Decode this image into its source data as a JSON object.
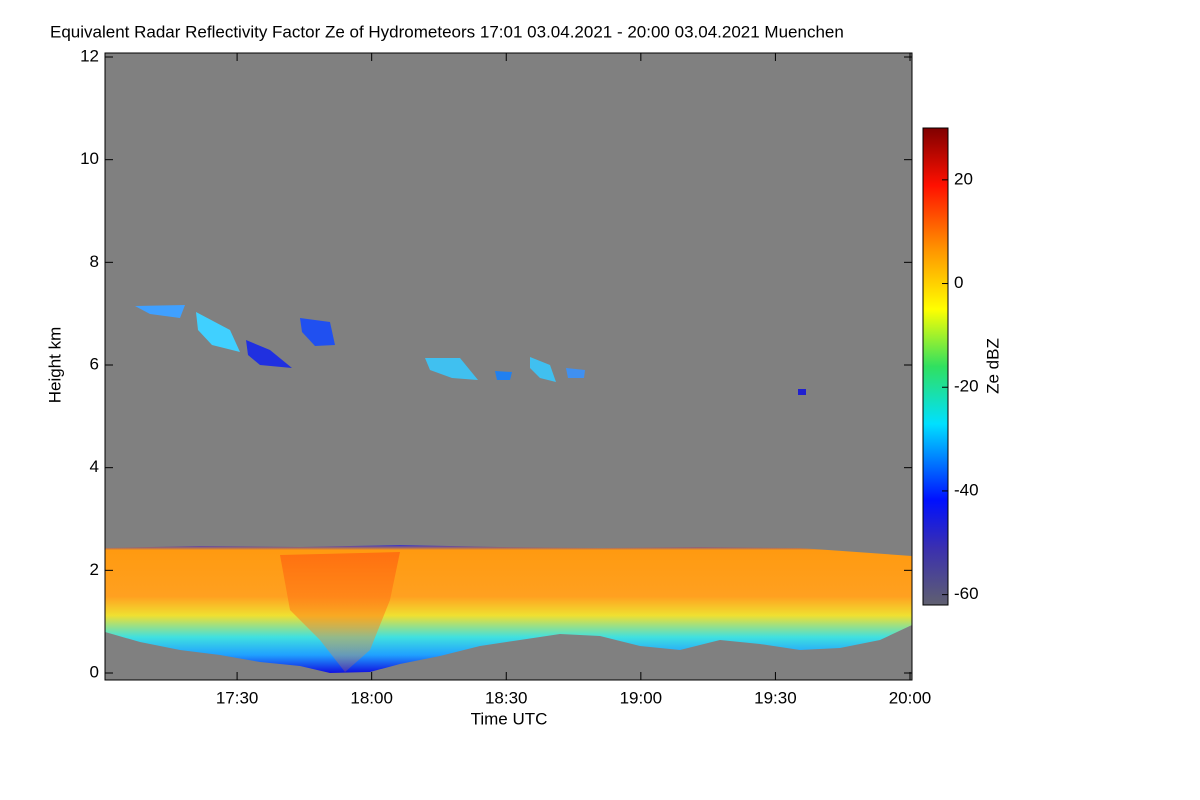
{
  "chart_data": {
    "type": "heatmap",
    "title": "Equivalent Radar Reflectivity Factor Ze of Hydrometeors   17:01 03.04.2021 - 20:00 03.04.2021 Muenchen",
    "xlabel": "Time UTC",
    "ylabel": "Height km",
    "xlim": [
      "17:01",
      "20:00"
    ],
    "xticks": [
      "17:30",
      "18:00",
      "18:30",
      "19:00",
      "19:30",
      "20:00"
    ],
    "ylim": [
      0,
      12
    ],
    "yticks": [
      0,
      2,
      4,
      6,
      8,
      10,
      12
    ],
    "colorbar_label": "Ze dBZ",
    "zlim": [
      -62,
      30
    ],
    "zticks": [
      -60,
      -40,
      -20,
      0,
      20
    ]
  }
}
